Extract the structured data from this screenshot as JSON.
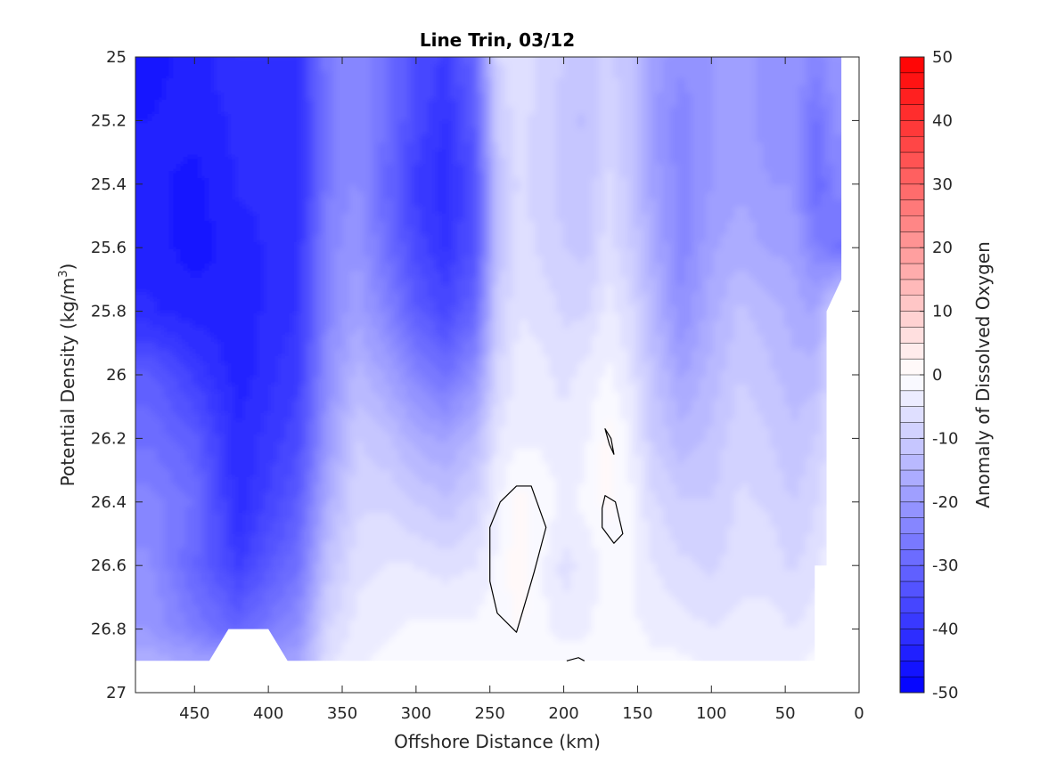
{
  "chart_data": {
    "type": "heatmap",
    "subtype": "filled-contour",
    "title": "Line Trin, 03/12",
    "xlabel": "Offshore Distance (km)",
    "ylabel": "Potential Density (kg/m",
    "ylabel_sup": "3",
    "ylabel_end": ")",
    "colorbar_label": "Anomaly of Dissolved Oxygen",
    "x_direction": "reversed",
    "xlim": [
      490,
      0
    ],
    "ylim": [
      25,
      27
    ],
    "y_direction": "reversed",
    "x_ticks": [
      450,
      400,
      350,
      300,
      250,
      200,
      150,
      100,
      50,
      0
    ],
    "x_tick_labels": [
      "450",
      "400",
      "350",
      "300",
      "250",
      "200",
      "150",
      "100",
      "50",
      "0"
    ],
    "y_ticks": [
      25,
      25.2,
      25.4,
      25.6,
      25.8,
      26,
      26.2,
      26.4,
      26.6,
      26.8,
      27
    ],
    "y_tick_labels": [
      "25",
      "25.2",
      "25.4",
      "25.6",
      "25.8",
      "26",
      "26.2",
      "26.4",
      "26.6",
      "26.8",
      "27"
    ],
    "colorbar_ticks": [
      50,
      40,
      30,
      20,
      10,
      0,
      -10,
      -20,
      -30,
      -40,
      -50
    ],
    "colorbar_tick_labels": [
      "50",
      "40",
      "30",
      "20",
      "10",
      "0",
      "-10",
      "-20",
      "-30",
      "-40",
      "-50"
    ],
    "clim": [
      -50,
      50
    ],
    "contour_step": 2.5,
    "colormap": {
      "min_color": "#0000ff",
      "mid_color": "#ffffff",
      "max_color": "#ff0000"
    },
    "grid": false,
    "x": [
      480,
      450,
      420,
      380,
      360,
      340,
      320,
      300,
      280,
      260,
      245,
      230,
      215,
      200,
      185,
      170,
      155,
      140,
      120,
      100,
      80,
      60,
      45,
      30,
      15
    ],
    "y": [
      25,
      25.2,
      25.4,
      25.6,
      25.8,
      26,
      26.2,
      26.4,
      26.6,
      26.8,
      26.9
    ],
    "z": [
      [
        -46,
        -44,
        -40,
        -40,
        -26,
        -22,
        -28,
        -35,
        -38,
        -30,
        -8,
        -5,
        -8,
        -10,
        -12,
        -9,
        -12,
        -18,
        -22,
        -20,
        -18,
        -22,
        -20,
        -24,
        -20
      ],
      [
        -45,
        -44,
        -42,
        -42,
        -26,
        -22,
        -28,
        -36,
        -40,
        -32,
        -10,
        -6,
        -9,
        -11,
        -13,
        -8,
        -12,
        -20,
        -24,
        -20,
        -18,
        -22,
        -20,
        -28,
        -22
      ],
      [
        -44,
        -46,
        -42,
        -42,
        -26,
        -22,
        -30,
        -38,
        -42,
        -34,
        -12,
        -7,
        -9,
        -11,
        -12,
        -7,
        -11,
        -18,
        -24,
        -20,
        -18,
        -20,
        -20,
        -30,
        -24
      ],
      [
        -44,
        -46,
        -44,
        -40,
        -24,
        -20,
        -28,
        -36,
        -40,
        -34,
        -12,
        -6,
        -8,
        -10,
        -11,
        -6,
        -10,
        -16,
        -24,
        -18,
        -16,
        -18,
        -18,
        -24,
        -28
      ],
      [
        -42,
        -44,
        -44,
        -40,
        -24,
        -18,
        -24,
        -32,
        -36,
        -30,
        -10,
        -5,
        -6,
        -8,
        -8,
        -4,
        -7,
        -14,
        -22,
        -16,
        -12,
        -14,
        -16,
        -18,
        -8
      ],
      [
        -32,
        -38,
        -44,
        -38,
        -22,
        -14,
        -18,
        -24,
        -28,
        -22,
        -8,
        -4,
        -4,
        -6,
        -4,
        -2,
        -5,
        -12,
        -18,
        -14,
        -10,
        -12,
        -14,
        -14,
        -6
      ],
      [
        -28,
        -32,
        -42,
        -36,
        -20,
        -10,
        -12,
        -16,
        -18,
        -14,
        -5,
        -3,
        -3,
        -4,
        -3,
        1,
        -3,
        -10,
        -14,
        -12,
        -8,
        -10,
        -12,
        -10,
        -5
      ],
      [
        -24,
        -28,
        -42,
        -32,
        -16,
        -8,
        -8,
        -10,
        -12,
        -9,
        -3,
        1,
        -1,
        -3,
        -2,
        1,
        -2,
        -7,
        -10,
        -10,
        -7,
        -8,
        -10,
        -8,
        -4
      ],
      [
        -22,
        -30,
        -38,
        -28,
        -12,
        -6,
        -5,
        -5,
        -6,
        -5,
        -2,
        2,
        -2,
        -6,
        -4,
        -2,
        -2,
        -5,
        -7,
        -8,
        -6,
        -6,
        -8,
        -6,
        -2
      ],
      [
        -20,
        -26,
        -30,
        -22,
        -8,
        -4,
        -3,
        -2,
        -2,
        -2,
        -1,
        0,
        -2,
        -4,
        -3,
        -1,
        -2,
        -3,
        -4,
        -5,
        -4,
        -4,
        -5,
        -4,
        -1
      ],
      [
        -16,
        -18,
        -22,
        -18,
        -6,
        -3,
        -2,
        -1,
        -1,
        -1,
        -1,
        -1,
        -1,
        -1,
        -1,
        -1,
        -1,
        -2,
        -2,
        -3,
        -3,
        -3,
        -3,
        -2,
        -1
      ]
    ]
  }
}
